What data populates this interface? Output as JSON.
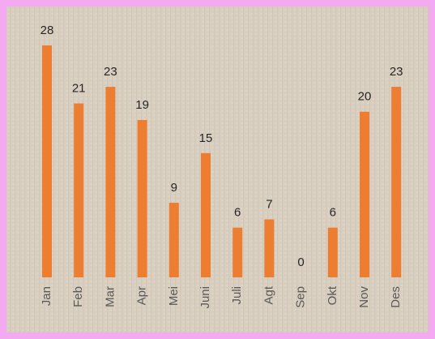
{
  "chart_data": {
    "type": "bar",
    "categories": [
      "Jan",
      "Feb",
      "Mar",
      "Apr",
      "Mei",
      "Juni",
      "Juli",
      "Agt",
      "Sep",
      "Okt",
      "Nov",
      "Des"
    ],
    "values": [
      28,
      21,
      23,
      19,
      9,
      15,
      6,
      7,
      0,
      6,
      20,
      23
    ],
    "color": "#ed7d31"
  }
}
